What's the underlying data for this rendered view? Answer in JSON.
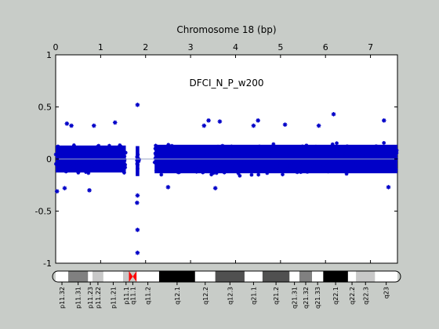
{
  "chart_data": {
    "type": "scatter",
    "xlabel": "Chromosome 18 (bp)",
    "annotation": "DFCI_N_P_w200",
    "xlim": [
      0,
      7.6
    ],
    "ylim": [
      -1,
      1
    ],
    "x_ticks": [
      0,
      1,
      2,
      3,
      4,
      5,
      6,
      7
    ],
    "y_ticks": [
      1,
      0.5,
      0,
      -0.5,
      -1
    ],
    "y_tick_labels": [
      "1",
      "0.5",
      "0",
      "-0.5",
      "-1"
    ],
    "baseline": 0,
    "grid": false,
    "colors": {
      "points": "#0000c8",
      "baseline": "#9aa6c6",
      "centromere": "#ff0000",
      "background": "#c8ccc8",
      "axes_bg": "#ffffff"
    },
    "series": [
      {
        "marker": "asterisk",
        "segments": [
          {
            "x_range": [
              0.0,
              1.56
            ],
            "y_center": 0.0,
            "y_spread": 0.18
          },
          {
            "x_range": [
              1.78,
              1.86
            ],
            "y_center": -0.02,
            "y_spread": 0.2
          },
          {
            "x_range": [
              2.2,
              7.6
            ],
            "y_center": 0.0,
            "y_spread": 0.19
          }
        ],
        "outliers": [
          {
            "x": 1.82,
            "y": 0.52
          },
          {
            "x": 1.82,
            "y": -0.68
          },
          {
            "x": 1.82,
            "y": -0.9
          },
          {
            "x": 1.81,
            "y": -0.42
          },
          {
            "x": 1.82,
            "y": -0.35
          },
          {
            "x": 6.18,
            "y": 0.43
          },
          {
            "x": 3.4,
            "y": 0.37
          },
          {
            "x": 3.65,
            "y": 0.36
          },
          {
            "x": 4.5,
            "y": 0.37
          },
          {
            "x": 4.4,
            "y": 0.32
          },
          {
            "x": 5.1,
            "y": 0.33
          },
          {
            "x": 3.3,
            "y": 0.32
          },
          {
            "x": 0.85,
            "y": 0.32
          },
          {
            "x": 0.25,
            "y": 0.34
          },
          {
            "x": 0.35,
            "y": 0.32
          },
          {
            "x": 1.32,
            "y": 0.35
          },
          {
            "x": 7.3,
            "y": 0.37
          },
          {
            "x": 5.85,
            "y": 0.32
          },
          {
            "x": 0.75,
            "y": -0.3
          },
          {
            "x": 0.03,
            "y": -0.31
          },
          {
            "x": 0.2,
            "y": -0.28
          },
          {
            "x": 2.5,
            "y": -0.27
          },
          {
            "x": 3.55,
            "y": -0.28
          },
          {
            "x": 7.4,
            "y": -0.27
          }
        ]
      }
    ],
    "ideogram": {
      "bands": [
        {
          "label": "p11.32",
          "start": 0.0,
          "end": 0.28,
          "stain": "white"
        },
        {
          "label": "p11.31",
          "start": 0.28,
          "end": 0.72,
          "stain": "gray"
        },
        {
          "label": "p11.23",
          "start": 0.72,
          "end": 0.82,
          "stain": "white"
        },
        {
          "label": "p11.22",
          "start": 0.82,
          "end": 1.06,
          "stain": "lightgray"
        },
        {
          "label": "p11.21",
          "start": 1.06,
          "end": 1.5,
          "stain": "white"
        },
        {
          "label": "p11.1",
          "start": 1.5,
          "end": 1.63,
          "stain": "lightgray"
        },
        {
          "label": "q11.1",
          "start": 1.63,
          "end": 1.8,
          "stain": "centromere"
        },
        {
          "label": "q11.2",
          "start": 1.8,
          "end": 2.3,
          "stain": "white"
        },
        {
          "label": "q12.1",
          "start": 2.3,
          "end": 3.1,
          "stain": "black"
        },
        {
          "label": "q12.2",
          "start": 3.1,
          "end": 3.55,
          "stain": "white"
        },
        {
          "label": "q12.3",
          "start": 3.55,
          "end": 4.2,
          "stain": "darkgray"
        },
        {
          "label": "q21.1",
          "start": 4.2,
          "end": 4.6,
          "stain": "white"
        },
        {
          "label": "q21.2",
          "start": 4.6,
          "end": 5.2,
          "stain": "darkgray"
        },
        {
          "label": "q21.31",
          "start": 5.2,
          "end": 5.42,
          "stain": "white"
        },
        {
          "label": "q21.32",
          "start": 5.42,
          "end": 5.7,
          "stain": "gray"
        },
        {
          "label": "q21.33",
          "start": 5.7,
          "end": 5.95,
          "stain": "white"
        },
        {
          "label": "q22.1",
          "start": 5.95,
          "end": 6.5,
          "stain": "black"
        },
        {
          "label": "q22.2",
          "start": 6.5,
          "end": 6.68,
          "stain": "white"
        },
        {
          "label": "q22.3",
          "start": 6.68,
          "end": 7.1,
          "stain": "lightgray"
        },
        {
          "label": "q23",
          "start": 7.1,
          "end": 7.6,
          "stain": "white"
        }
      ]
    }
  }
}
